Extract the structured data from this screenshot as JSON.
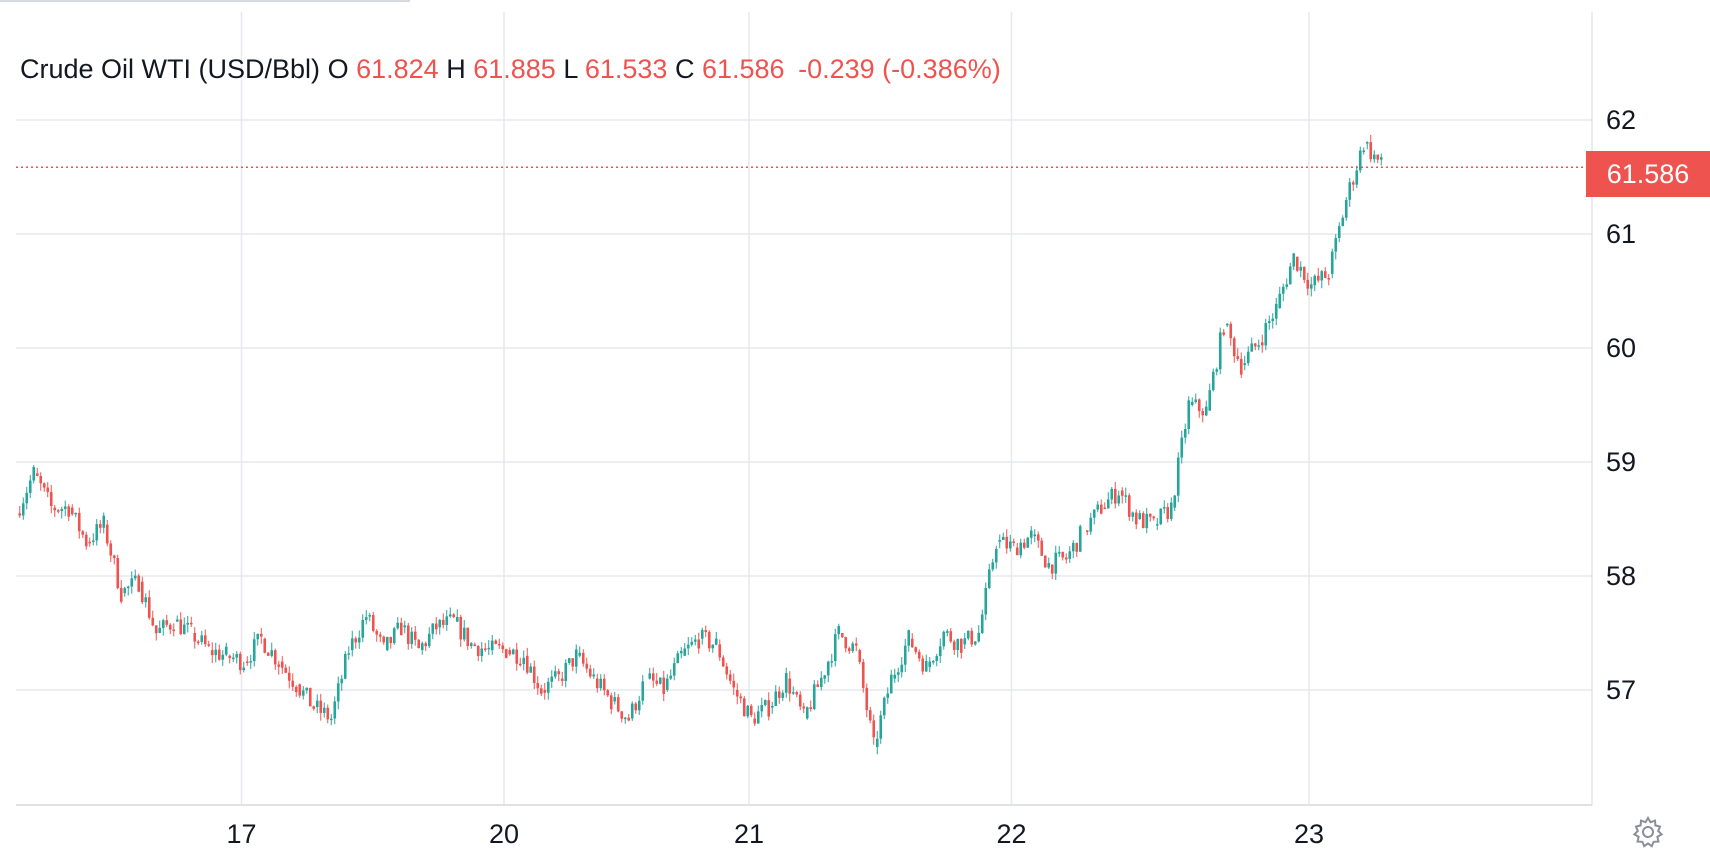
{
  "legend": {
    "symbol": "Crude Oil WTI (USD/Bbl)",
    "open_label": "O",
    "open": "61.824",
    "high_label": "H",
    "high": "61.885",
    "low_label": "L",
    "low": "61.533",
    "close_label": "C",
    "close": "61.586",
    "change": "-0.239",
    "change_pct": "(-0.386%)"
  },
  "last_price_label": "61.586",
  "colors": {
    "up": "#26a69a",
    "down": "#ef5350",
    "grid": "#e6e8ee",
    "text": "#131722"
  },
  "icons": {
    "settings": "gear-icon"
  },
  "chart_data": {
    "type": "candlestick",
    "grid": true,
    "y_ticks": [
      57,
      58,
      59,
      60,
      61,
      62
    ],
    "ylim": [
      55.98,
      62.5
    ],
    "x_ticks": [
      "17",
      "20",
      "21",
      "22",
      "23"
    ],
    "last_price": 61.586,
    "anchors": [
      {
        "tick": "",
        "y": 58.55
      },
      {
        "tick": "",
        "y": 58.9
      },
      {
        "tick": "",
        "y": 58.6
      },
      {
        "tick": "",
        "y": 58.6
      },
      {
        "tick": "",
        "y": 58.3
      },
      {
        "tick": "",
        "y": 58.45
      },
      {
        "tick": "",
        "y": 57.85
      },
      {
        "tick": "",
        "y": 57.95
      },
      {
        "tick": "",
        "y": 57.5
      },
      {
        "tick": "",
        "y": 57.6
      },
      {
        "tick": "",
        "y": 57.5
      },
      {
        "tick": "",
        "y": 57.35
      },
      {
        "tick": "",
        "y": 57.3
      },
      {
        "tick": "17",
        "y": 57.25
      },
      {
        "tick": "",
        "y": 57.45
      },
      {
        "tick": "",
        "y": 57.25
      },
      {
        "tick": "",
        "y": 57.05
      },
      {
        "tick": "",
        "y": 56.85
      },
      {
        "tick": "",
        "y": 56.75
      },
      {
        "tick": "",
        "y": 57.35
      },
      {
        "tick": "",
        "y": 57.65
      },
      {
        "tick": "",
        "y": 57.35
      },
      {
        "tick": "",
        "y": 57.55
      },
      {
        "tick": "",
        "y": 57.35
      },
      {
        "tick": "",
        "y": 57.55
      },
      {
        "tick": "",
        "y": 57.6
      },
      {
        "tick": "",
        "y": 57.4
      },
      {
        "tick": "",
        "y": 57.35
      },
      {
        "tick": "20",
        "y": 57.35
      },
      {
        "tick": "",
        "y": 57.3
      },
      {
        "tick": "",
        "y": 57.0
      },
      {
        "tick": "",
        "y": 57.1
      },
      {
        "tick": "",
        "y": 57.3
      },
      {
        "tick": "",
        "y": 57.1
      },
      {
        "tick": "",
        "y": 56.9
      },
      {
        "tick": "",
        "y": 56.75
      },
      {
        "tick": "",
        "y": 57.1
      },
      {
        "tick": "",
        "y": 57.0
      },
      {
        "tick": "",
        "y": 57.3
      },
      {
        "tick": "",
        "y": 57.45
      },
      {
        "tick": "",
        "y": 57.4
      },
      {
        "tick": "",
        "y": 57.0
      },
      {
        "tick": "21",
        "y": 56.75
      },
      {
        "tick": "",
        "y": 56.85
      },
      {
        "tick": "",
        "y": 57.1
      },
      {
        "tick": "",
        "y": 56.75
      },
      {
        "tick": "",
        "y": 57.1
      },
      {
        "tick": "",
        "y": 57.5
      },
      {
        "tick": "",
        "y": 57.35
      },
      {
        "tick": "",
        "y": 56.5
      },
      {
        "tick": "",
        "y": 57.1
      },
      {
        "tick": "",
        "y": 57.45
      },
      {
        "tick": "",
        "y": 57.2
      },
      {
        "tick": "",
        "y": 57.5
      },
      {
        "tick": "",
        "y": 57.4
      },
      {
        "tick": "",
        "y": 57.5
      },
      {
        "tick": "",
        "y": 58.3
      },
      {
        "tick": "22",
        "y": 58.25
      },
      {
        "tick": "",
        "y": 58.35
      },
      {
        "tick": "",
        "y": 58.1
      },
      {
        "tick": "",
        "y": 58.15
      },
      {
        "tick": "",
        "y": 58.4
      },
      {
        "tick": "",
        "y": 58.6
      },
      {
        "tick": "",
        "y": 58.75
      },
      {
        "tick": "",
        "y": 58.5
      },
      {
        "tick": "",
        "y": 58.45
      },
      {
        "tick": "",
        "y": 58.6
      },
      {
        "tick": "",
        "y": 59.5
      },
      {
        "tick": "",
        "y": 59.45
      },
      {
        "tick": "",
        "y": 60.2
      },
      {
        "tick": "",
        "y": 59.85
      },
      {
        "tick": "",
        "y": 60.05
      },
      {
        "tick": "",
        "y": 60.35
      },
      {
        "tick": "",
        "y": 60.8
      },
      {
        "tick": "23",
        "y": 60.55
      },
      {
        "tick": "",
        "y": 60.65
      },
      {
        "tick": "",
        "y": 61.3
      },
      {
        "tick": "",
        "y": 61.8
      },
      {
        "tick": "",
        "y": 61.6
      }
    ],
    "gap_after_anchor": [
      35,
      60
    ]
  }
}
